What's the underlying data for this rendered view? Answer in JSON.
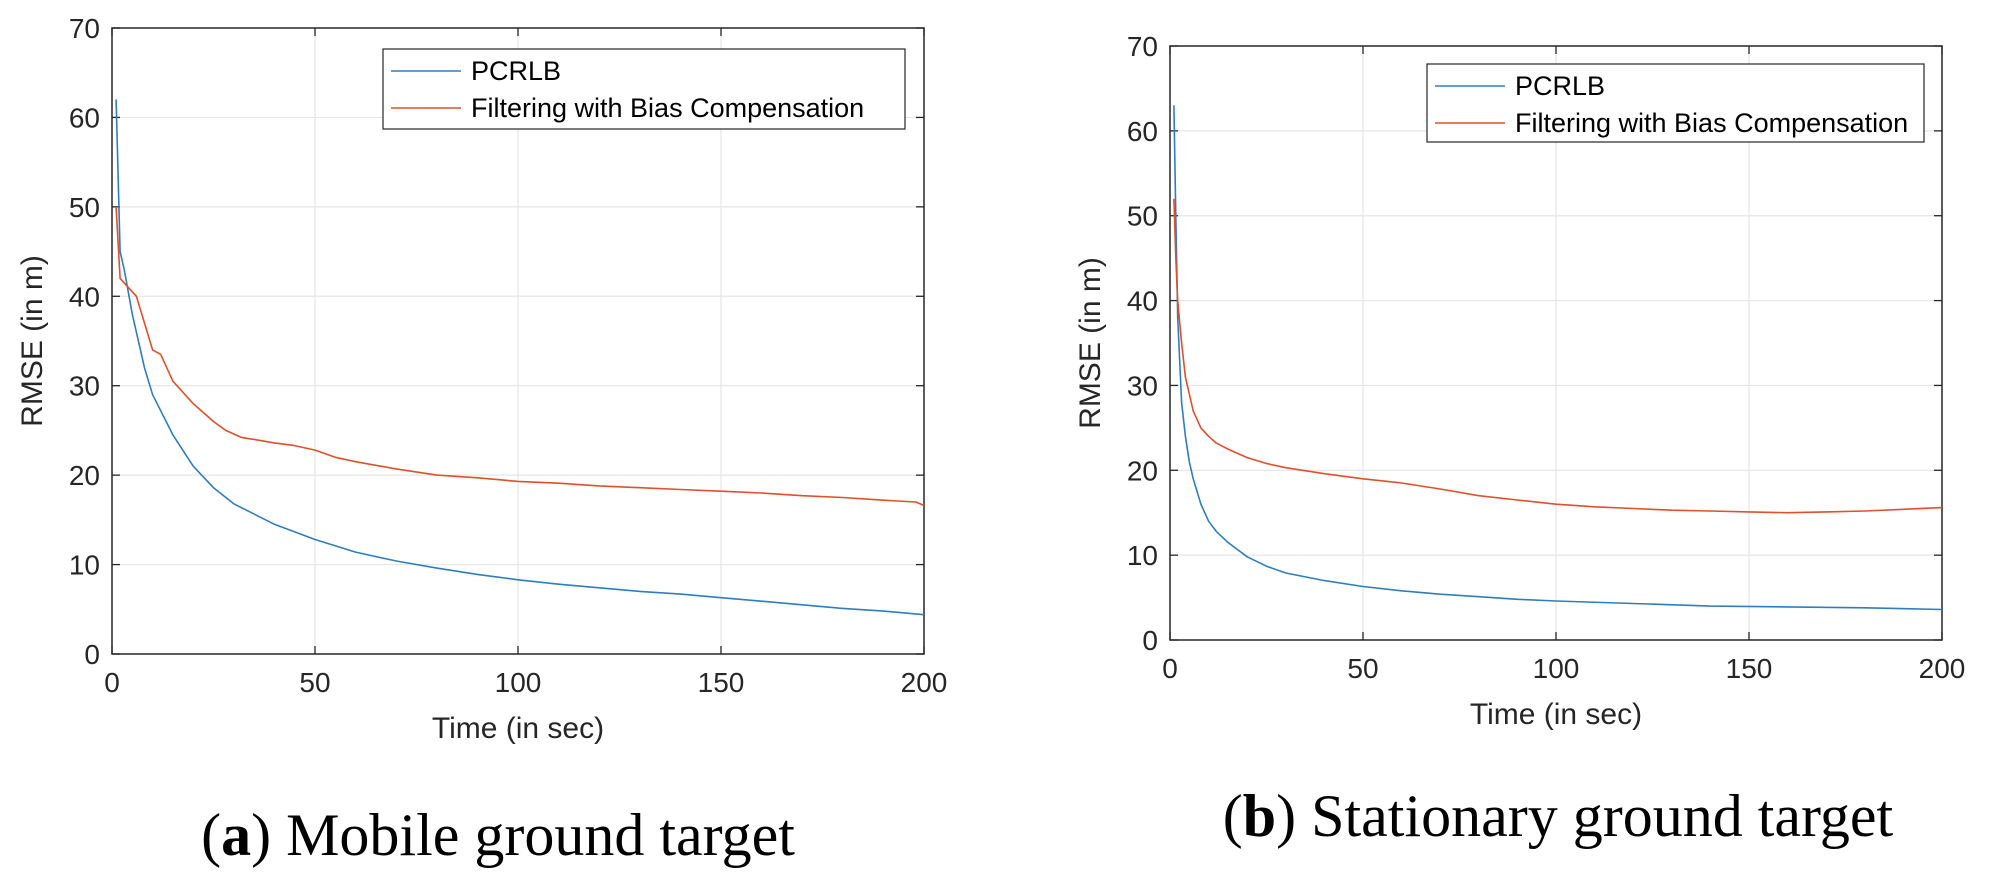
{
  "colors": {
    "pcrlb": "#2e7ebf",
    "filtering": "#e0502a",
    "grid": "#e6e6e6",
    "axis": "#262626"
  },
  "chart_data": [
    {
      "type": "line",
      "caption_letter": "a",
      "caption_text": "Mobile ground target",
      "xlabel": "Time (in sec)",
      "ylabel": "RMSE (in m)",
      "xlim": [
        0,
        200
      ],
      "ylim": [
        0,
        70
      ],
      "xticks": [
        0,
        50,
        100,
        150,
        200
      ],
      "yticks": [
        0,
        10,
        20,
        30,
        40,
        50,
        60,
        70
      ],
      "grid": true,
      "legend_position": "top-right",
      "series": [
        {
          "name": "PCRLB",
          "color": "#2e7ebf",
          "x": [
            1,
            2,
            3,
            5,
            8,
            10,
            15,
            20,
            25,
            30,
            40,
            50,
            60,
            70,
            80,
            90,
            100,
            110,
            120,
            130,
            140,
            150,
            160,
            170,
            180,
            190,
            200
          ],
          "y": [
            62,
            45,
            43,
            38,
            32,
            29,
            24.5,
            21,
            18.6,
            16.8,
            14.5,
            12.8,
            11.4,
            10.4,
            9.6,
            8.9,
            8.3,
            7.8,
            7.4,
            7.0,
            6.7,
            6.3,
            5.9,
            5.5,
            5.1,
            4.8,
            4.4
          ]
        },
        {
          "name": "Filtering with Bias Compensation",
          "color": "#e0502a",
          "x": [
            1,
            2,
            3,
            4,
            5,
            6,
            8,
            10,
            12,
            15,
            18,
            20,
            25,
            28,
            32,
            35,
            40,
            45,
            50,
            55,
            60,
            70,
            80,
            90,
            100,
            110,
            120,
            130,
            140,
            150,
            160,
            170,
            180,
            190,
            198,
            200
          ],
          "y": [
            50,
            42,
            41.5,
            41,
            40.5,
            40,
            37,
            34,
            33.5,
            30.5,
            29,
            28,
            26,
            25,
            24.2,
            24,
            23.6,
            23.3,
            22.8,
            22,
            21.5,
            20.7,
            20,
            19.7,
            19.3,
            19.1,
            18.8,
            18.6,
            18.4,
            18.2,
            18.0,
            17.7,
            17.5,
            17.2,
            17.0,
            16.6
          ]
        }
      ]
    },
    {
      "type": "line",
      "caption_letter": "b",
      "caption_text": "Stationary ground target",
      "xlabel": "Time (in sec)",
      "ylabel": "RMSE (in m)",
      "xlim": [
        0,
        200
      ],
      "ylim": [
        0,
        70
      ],
      "xticks": [
        0,
        50,
        100,
        150,
        200
      ],
      "yticks": [
        0,
        10,
        20,
        30,
        40,
        50,
        60,
        70
      ],
      "grid": true,
      "legend_position": "top-right",
      "series": [
        {
          "name": "PCRLB",
          "color": "#2e7ebf",
          "x": [
            1,
            1.5,
            2,
            3,
            4,
            5,
            6,
            8,
            10,
            12,
            15,
            20,
            25,
            30,
            40,
            50,
            60,
            70,
            80,
            90,
            100,
            120,
            140,
            160,
            180,
            200
          ],
          "y": [
            63,
            50,
            38,
            28,
            24,
            21,
            19,
            16,
            14,
            12.8,
            11.5,
            9.8,
            8.7,
            7.9,
            7.0,
            6.3,
            5.8,
            5.4,
            5.1,
            4.8,
            4.6,
            4.3,
            4.0,
            3.9,
            3.8,
            3.6
          ]
        },
        {
          "name": "Filtering with Bias Compensation",
          "color": "#e0502a",
          "x": [
            1,
            1.5,
            2,
            3,
            4,
            5,
            6,
            8,
            10,
            12,
            15,
            20,
            25,
            30,
            40,
            50,
            60,
            70,
            80,
            90,
            100,
            110,
            120,
            130,
            140,
            150,
            160,
            170,
            180,
            190,
            200
          ],
          "y": [
            52,
            45,
            40,
            35,
            31,
            29,
            27,
            25,
            24,
            23.2,
            22.5,
            21.5,
            20.8,
            20.3,
            19.6,
            19.0,
            18.5,
            17.8,
            17.0,
            16.5,
            16.0,
            15.7,
            15.5,
            15.3,
            15.2,
            15.1,
            15.0,
            15.1,
            15.2,
            15.4,
            15.6
          ]
        }
      ]
    }
  ]
}
